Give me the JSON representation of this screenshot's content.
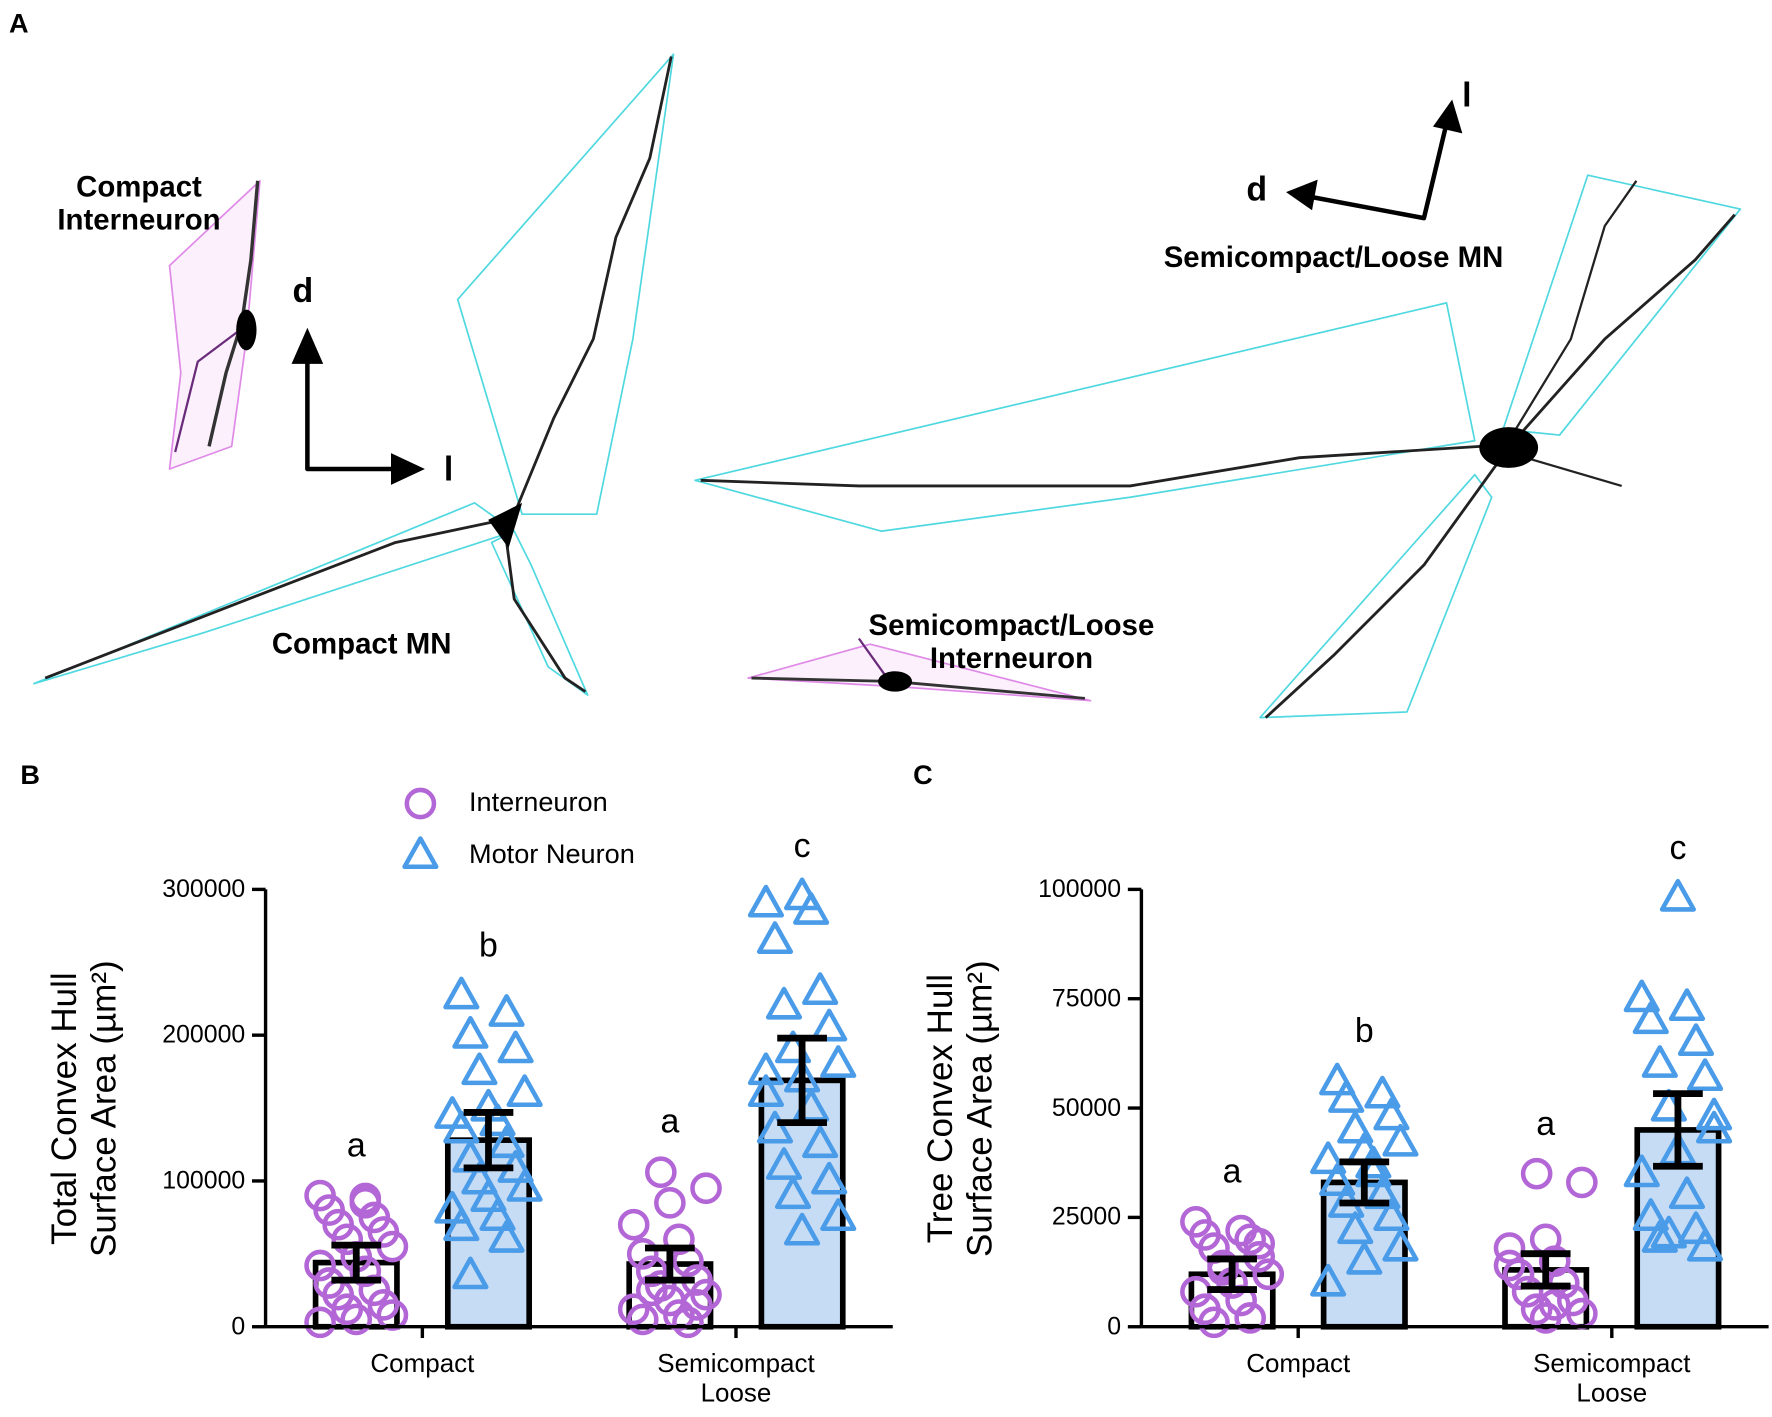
{
  "panel_a": {
    "label": "A",
    "compact_interneuron": "Compact\nInterneuron",
    "compact_mn": "Compact MN",
    "semi_mn": "Semicompact/Loose MN",
    "semi_interneuron": "Semicompact/Loose\nInterneuron",
    "axis_labels": [
      "d",
      "l",
      "d",
      "l"
    ]
  },
  "chart_data": [
    {
      "type": "bar",
      "panel": "B",
      "ylabel": "Total Convex Hull\nSurface Area (µm²)",
      "categories": [
        "Compact",
        "Semicompact\nLoose"
      ],
      "ylim": [
        0,
        300000
      ],
      "yticks": [
        0,
        100000,
        200000,
        300000
      ],
      "legend": true,
      "annotations": [
        [
          "a",
          "a"
        ],
        [
          "b",
          "c"
        ]
      ],
      "series": [
        {
          "name": "Interneuron",
          "color": "#b366d6",
          "bar_fill": "#ffffff",
          "marker": "circle",
          "values": [
            44000,
            43000
          ],
          "errors": [
            12000,
            11000
          ],
          "points": [
            [
              90000,
              85000,
              80000,
              75000,
              70000,
              65000,
              60000,
              55000,
              48000,
              42000,
              38000,
              30000,
              25000,
              22000,
              15000,
              12000,
              8000,
              5000,
              3000,
              88000
            ],
            [
              106000,
              95000,
              85000,
              70000,
              60000,
              50000,
              45000,
              38000,
              32000,
              28000,
              22000,
              18000,
              12000,
              8000,
              5000,
              3000,
              25000,
              15000
            ]
          ]
        },
        {
          "name": "Motor Neuron",
          "color": "#4a9be8",
          "bar_fill": "#c6dcf5",
          "marker": "triangle",
          "values": [
            128000,
            169000
          ],
          "errors": [
            19000,
            29000
          ],
          "points": [
            [
              227000,
              215000,
              200000,
              190000,
              175000,
              160000,
              150000,
              145000,
              140000,
              135000,
              125000,
              115000,
              108000,
              100000,
              95000,
              88000,
              80000,
              75000,
              68000,
              60000,
              35000
            ],
            [
              295000,
              290000,
              285000,
              265000,
              230000,
              220000,
              205000,
              190000,
              180000,
              170000,
              160000,
              150000,
              135000,
              125000,
              110000,
              100000,
              90000,
              75000,
              65000,
              175000
            ]
          ]
        }
      ]
    },
    {
      "type": "bar",
      "panel": "C",
      "ylabel": "Tree Convex Hull\nSurface Area (µm²)",
      "categories": [
        "Compact",
        "Semicompact\nLoose"
      ],
      "ylim": [
        0,
        100000
      ],
      "yticks": [
        0,
        25000,
        50000,
        75000,
        100000
      ],
      "legend": false,
      "annotations": [
        [
          "a",
          "a"
        ],
        [
          "b",
          "c"
        ]
      ],
      "series": [
        {
          "color": "#b366d6",
          "bar_fill": "#ffffff",
          "marker": "circle",
          "values": [
            12000,
            13000
          ],
          "errors": [
            3500,
            3700
          ],
          "points": [
            [
              24000,
              22000,
              21000,
              20000,
              18000,
              16000,
              14000,
              12000,
              10000,
              8000,
              6000,
              4000,
              2000,
              1000,
              19000,
              13000
            ],
            [
              35000,
              33000,
              20000,
              18000,
              15000,
              12000,
              10000,
              8000,
              6000,
              4000,
              3000,
              2000,
              14000,
              5000
            ]
          ]
        },
        {
          "color": "#4a9be8",
          "bar_fill": "#c6dcf5",
          "marker": "triangle",
          "values": [
            33000,
            45000
          ],
          "errors": [
            4700,
            8300
          ],
          "points": [
            [
              56000,
              53000,
              52000,
              48000,
              45000,
              42000,
              40000,
              38000,
              35000,
              33000,
              30000,
              28000,
              25000,
              22000,
              18000,
              15000,
              10000,
              37000
            ],
            [
              98000,
              75000,
              73000,
              70000,
              65000,
              60000,
              57000,
              50000,
              45000,
              40000,
              35000,
              30000,
              25000,
              22000,
              20000,
              18000,
              21000,
              48000
            ]
          ]
        }
      ]
    }
  ]
}
